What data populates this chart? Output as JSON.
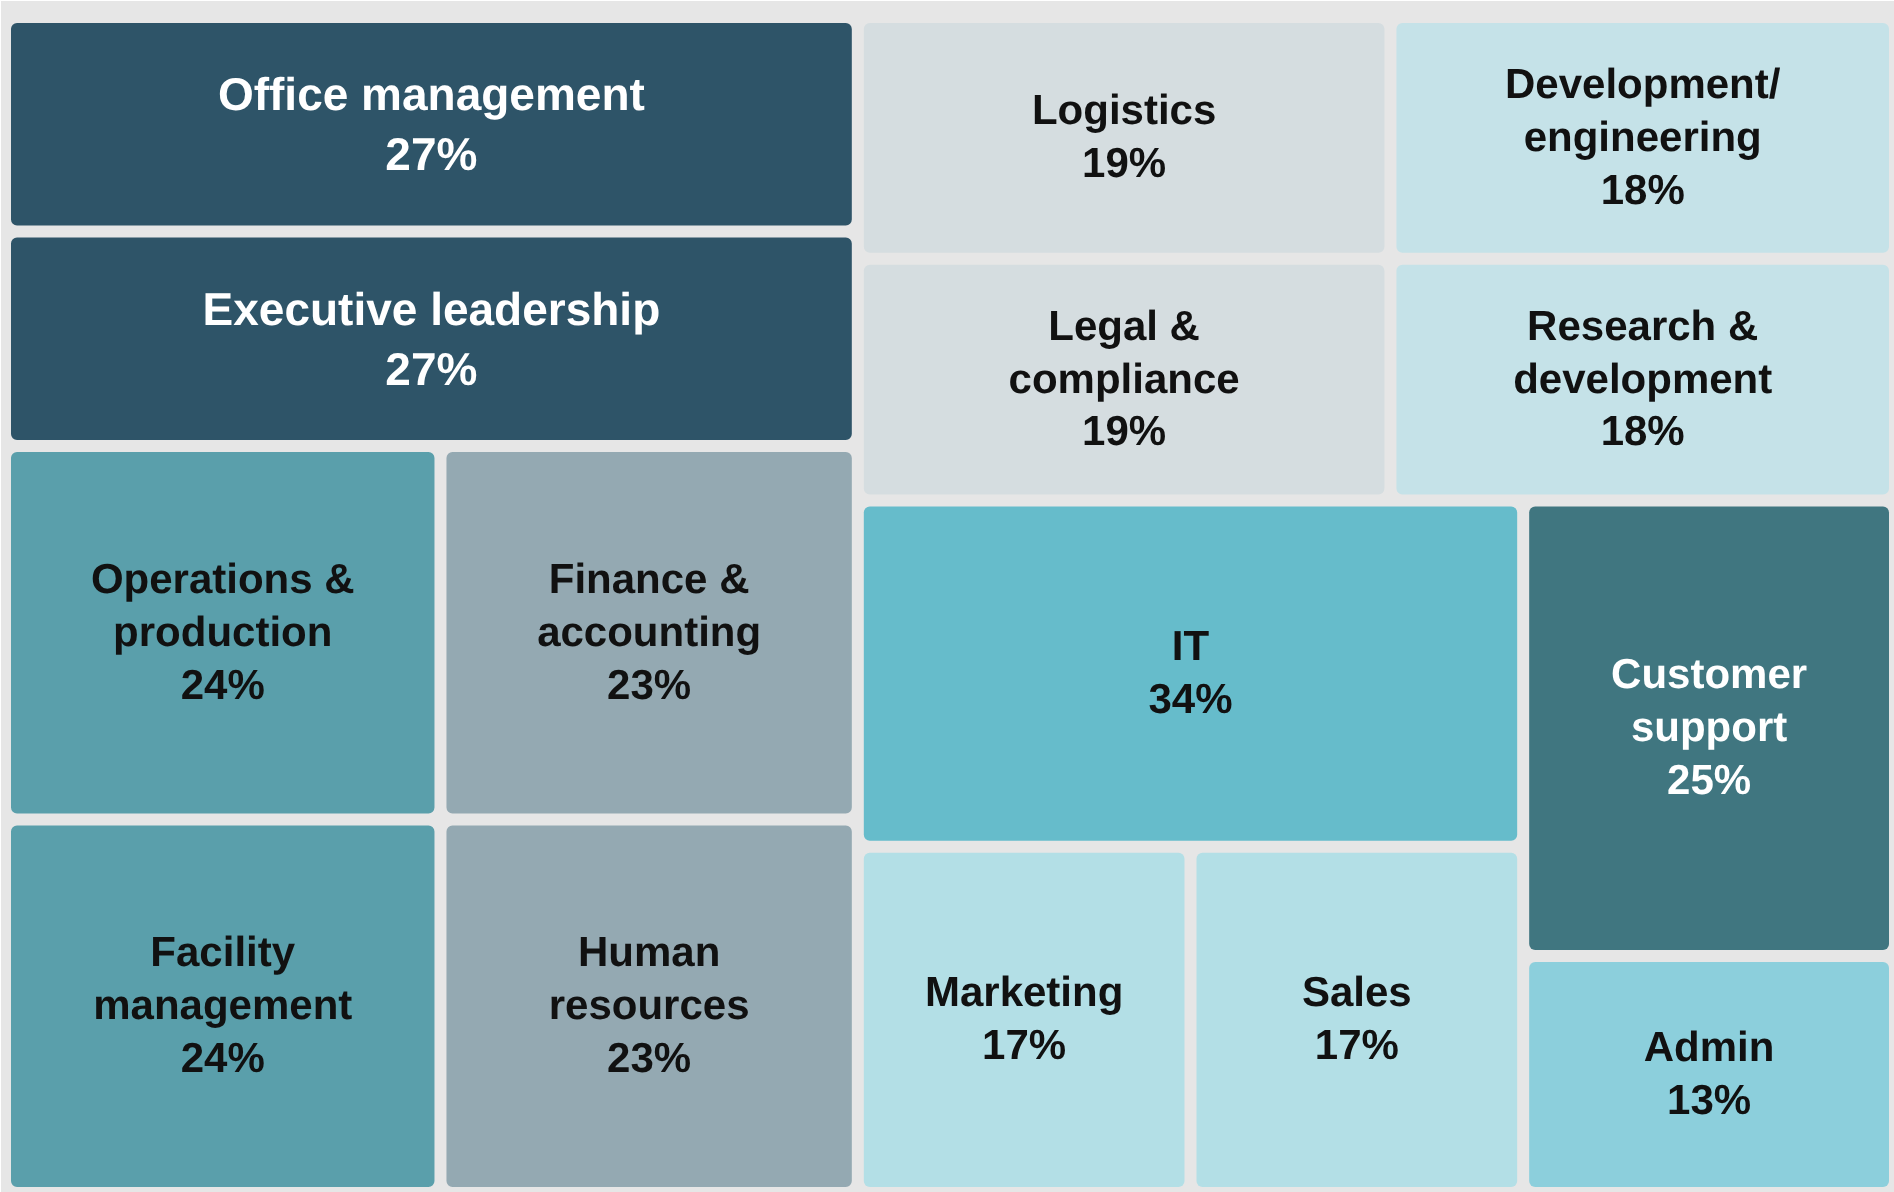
{
  "chart_data": {
    "type": "other",
    "categories": [
      "Office management",
      "Executive leadership",
      "Operations & production",
      "Finance & accounting",
      "Facility management",
      "Human resources",
      "Logistics",
      "Development/ engineering",
      "Legal & compliance",
      "Research & development",
      "IT",
      "Customer support",
      "Marketing",
      "Sales",
      "Admin"
    ],
    "values": [
      27,
      27,
      24,
      23,
      24,
      23,
      19,
      18,
      19,
      18,
      34,
      25,
      17,
      17,
      13
    ],
    "value_labels": [
      "27%",
      "27%",
      "24%",
      "23%",
      "24%",
      "23%",
      "19%",
      "18%",
      "19%",
      "18%",
      "34%",
      "25%",
      "17%",
      "17%",
      "13%"
    ],
    "colors": [
      "#2e5468",
      "#2e5468",
      "#5a9fab",
      "#94a9b2",
      "#5a9fab",
      "#94a9b2",
      "#d5dde0",
      "#c5e2e8",
      "#d5dde0",
      "#c5e2e8",
      "#66bccb",
      "#407680",
      "#b3dfe6",
      "#b3dfe6",
      "#8ccfdc"
    ]
  }
}
